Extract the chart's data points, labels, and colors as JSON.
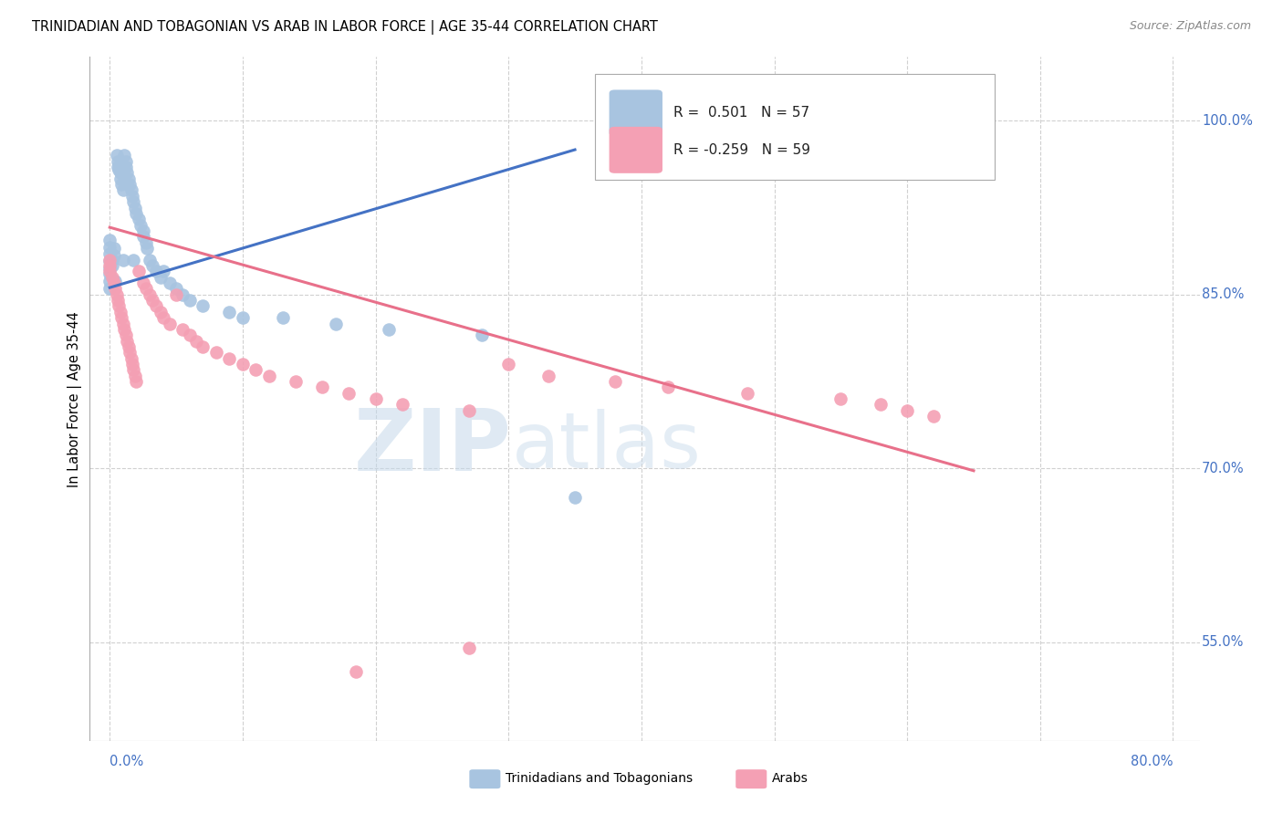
{
  "title": "TRINIDADIAN AND TOBAGONIAN VS ARAB IN LABOR FORCE | AGE 35-44 CORRELATION CHART",
  "source": "Source: ZipAtlas.com",
  "ylabel": "In Labor Force | Age 35-44",
  "right_ytick_vals": [
    1.0,
    0.85,
    0.7,
    0.55
  ],
  "right_ytick_labels": [
    "100.0%",
    "85.0%",
    "70.0%",
    "55.0%"
  ],
  "legend_blue_label": "R =  0.501   N = 57",
  "legend_pink_label": "R = -0.259   N = 59",
  "blue_color": "#a8c4e0",
  "pink_color": "#f4a0b4",
  "blue_line_color": "#4472c4",
  "pink_line_color": "#e8708a",
  "blue_line_x": [
    0.0,
    0.35
  ],
  "blue_line_y": [
    0.856,
    0.975
  ],
  "pink_line_x": [
    0.0,
    0.65
  ],
  "pink_line_y": [
    0.908,
    0.698
  ],
  "xlim": [
    -0.015,
    0.82
  ],
  "ylim": [
    0.465,
    1.055
  ],
  "xgrid_vals": [
    0.0,
    0.1,
    0.2,
    0.3,
    0.4,
    0.5,
    0.6,
    0.7,
    0.8
  ],
  "ygrid_vals": [
    0.55,
    0.7,
    0.85,
    1.0
  ],
  "blue_x": [
    0.0,
    0.0,
    0.0,
    0.0,
    0.0,
    0.0,
    0.0,
    0.0,
    0.002,
    0.002,
    0.003,
    0.003,
    0.004,
    0.005,
    0.006,
    0.006,
    0.007,
    0.008,
    0.008,
    0.009,
    0.01,
    0.01,
    0.011,
    0.012,
    0.012,
    0.013,
    0.014,
    0.015,
    0.016,
    0.017,
    0.018,
    0.018,
    0.019,
    0.02,
    0.022,
    0.023,
    0.025,
    0.025,
    0.027,
    0.028,
    0.03,
    0.032,
    0.035,
    0.038,
    0.04,
    0.045,
    0.05,
    0.055,
    0.06,
    0.07,
    0.09,
    0.1,
    0.13,
    0.17,
    0.21,
    0.28,
    0.35
  ],
  "blue_y": [
    0.855,
    0.862,
    0.868,
    0.873,
    0.879,
    0.885,
    0.891,
    0.897,
    0.88,
    0.875,
    0.89,
    0.884,
    0.862,
    0.97,
    0.965,
    0.96,
    0.958,
    0.955,
    0.95,
    0.945,
    0.94,
    0.88,
    0.97,
    0.965,
    0.96,
    0.955,
    0.95,
    0.945,
    0.94,
    0.935,
    0.93,
    0.88,
    0.925,
    0.92,
    0.915,
    0.91,
    0.905,
    0.9,
    0.895,
    0.89,
    0.88,
    0.875,
    0.87,
    0.865,
    0.87,
    0.86,
    0.855,
    0.85,
    0.845,
    0.84,
    0.835,
    0.83,
    0.83,
    0.825,
    0.82,
    0.815,
    0.675
  ],
  "pink_x": [
    0.0,
    0.0,
    0.0,
    0.002,
    0.003,
    0.004,
    0.005,
    0.006,
    0.007,
    0.008,
    0.009,
    0.01,
    0.011,
    0.012,
    0.013,
    0.014,
    0.015,
    0.016,
    0.017,
    0.018,
    0.019,
    0.02,
    0.022,
    0.025,
    0.027,
    0.03,
    0.032,
    0.035,
    0.038,
    0.04,
    0.045,
    0.05,
    0.055,
    0.06,
    0.065,
    0.07,
    0.08,
    0.09,
    0.1,
    0.11,
    0.12,
    0.14,
    0.16,
    0.18,
    0.2,
    0.22,
    0.27,
    0.3,
    0.33,
    0.38,
    0.42,
    0.48,
    0.55,
    0.58,
    0.6,
    0.62,
    0.65,
    0.185,
    0.27
  ],
  "pink_y": [
    0.88,
    0.875,
    0.87,
    0.865,
    0.86,
    0.855,
    0.85,
    0.845,
    0.84,
    0.835,
    0.83,
    0.825,
    0.82,
    0.815,
    0.81,
    0.805,
    0.8,
    0.795,
    0.79,
    0.785,
    0.78,
    0.775,
    0.87,
    0.86,
    0.855,
    0.85,
    0.845,
    0.84,
    0.835,
    0.83,
    0.825,
    0.85,
    0.82,
    0.815,
    0.81,
    0.805,
    0.8,
    0.795,
    0.79,
    0.785,
    0.78,
    0.775,
    0.77,
    0.765,
    0.76,
    0.755,
    0.75,
    0.79,
    0.78,
    0.775,
    0.77,
    0.765,
    0.76,
    0.755,
    0.75,
    0.745,
    1.0,
    0.525,
    0.545
  ]
}
